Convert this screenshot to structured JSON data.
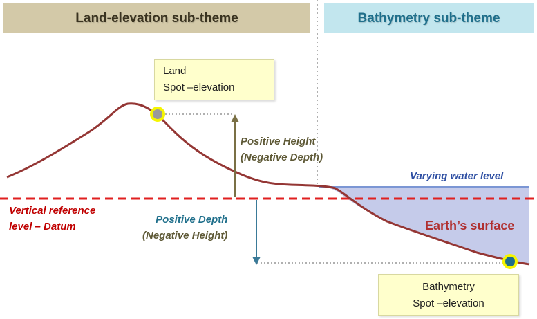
{
  "headers": {
    "land": "Land-elevation sub-theme",
    "bathymetry": "Bathymetry sub-theme"
  },
  "callouts": {
    "land": {
      "line1": "Land",
      "line2": "Spot –elevation"
    },
    "bathymetry": {
      "line1": "Bathymetry",
      "line2": "Spot –elevation"
    }
  },
  "labels": {
    "positive_height": {
      "line1": "Positive Height",
      "line2": "(Negative Depth)"
    },
    "positive_depth": {
      "line1": "Positive Depth",
      "line2": "(Negative Height)"
    },
    "datum": {
      "line1": "Vertical reference",
      "line2": "level – Datum"
    },
    "water_level": "Varying water level",
    "earth_surface": "Earth’s surface"
  },
  "colors": {
    "terrain": "#943634",
    "datum": "#e02020",
    "water_fill": "#c5cbea",
    "water_line": "#7b96d4",
    "land_arrow": "#7a7045",
    "depth_arrow": "#3a7a98",
    "marker_ring": "#f5f500",
    "land_marker": "#9a9a9a",
    "bathy_marker": "#1f6f8b"
  }
}
